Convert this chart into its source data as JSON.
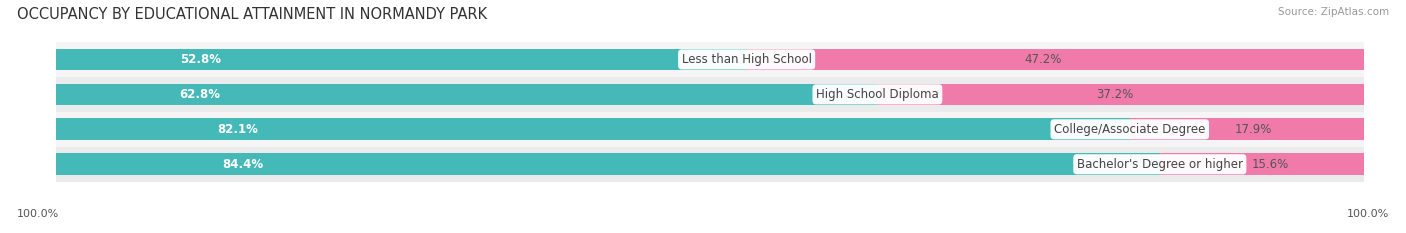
{
  "title": "OCCUPANCY BY EDUCATIONAL ATTAINMENT IN NORMANDY PARK",
  "source": "Source: ZipAtlas.com",
  "categories": [
    "Less than High School",
    "High School Diploma",
    "College/Associate Degree",
    "Bachelor's Degree or higher"
  ],
  "owner_pct": [
    52.8,
    62.8,
    82.1,
    84.4
  ],
  "renter_pct": [
    47.2,
    37.2,
    17.9,
    15.6
  ],
  "owner_color": "#45B8B8",
  "renter_color": "#F07BAB",
  "row_bg_colors": [
    "#F5F5F5",
    "#EBEBEB"
  ],
  "title_fontsize": 10.5,
  "label_fontsize": 8.5,
  "pct_fontsize": 8.5,
  "bar_height": 0.62,
  "figsize": [
    14.06,
    2.33
  ],
  "dpi": 100,
  "axis_label": "100.0%"
}
